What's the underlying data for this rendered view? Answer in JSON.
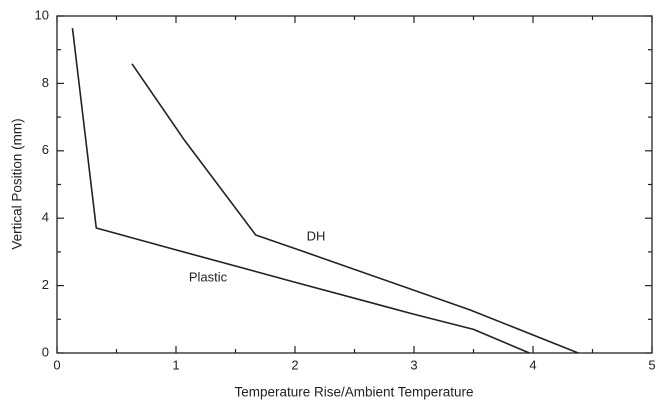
{
  "chart_data": {
    "type": "line",
    "xlabel": "Temperature Rise/Ambient Temperature",
    "ylabel": "Vertical Position (mm)",
    "xlim": [
      0,
      5
    ],
    "ylim": [
      0,
      10
    ],
    "xticks": [
      0,
      1,
      2,
      3,
      4,
      5
    ],
    "yticks": [
      0,
      2,
      4,
      6,
      8,
      10
    ],
    "series": [
      {
        "name": "Plastic",
        "color": "#222222",
        "x": [
          0.13,
          0.33,
          1.0,
          2.0,
          3.0,
          3.5,
          3.97
        ],
        "values": [
          9.64,
          3.71,
          3.06,
          2.1,
          1.15,
          0.7,
          0
        ]
      },
      {
        "name": "DH",
        "color": "#222222",
        "x": [
          0.63,
          1.07,
          1.67,
          2.08,
          3.47,
          4.38
        ],
        "values": [
          8.58,
          6.32,
          3.5,
          3.0,
          1.28,
          0
        ]
      }
    ]
  }
}
